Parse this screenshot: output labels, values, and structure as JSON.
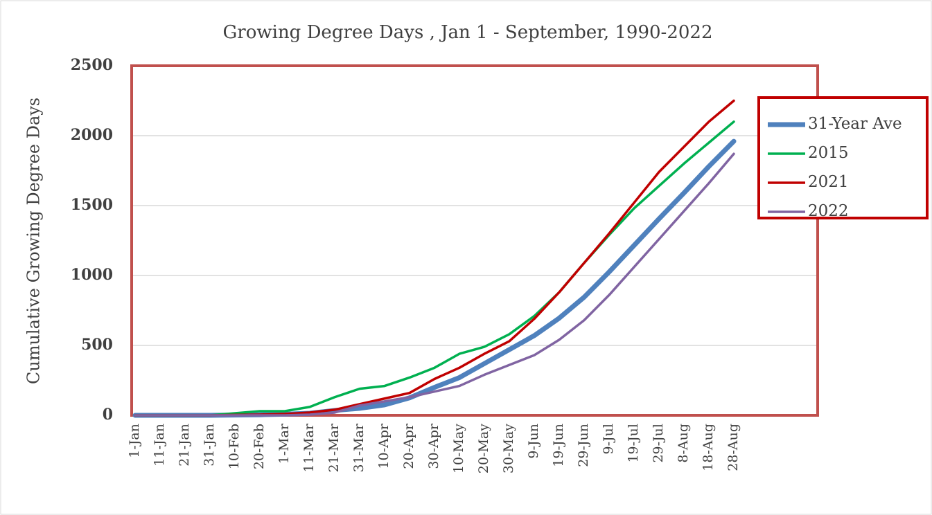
{
  "chart_data": {
    "type": "line",
    "title": "Growing Degree Days , Jan 1 - September, 1990-2022",
    "y_label": "Cumulative Growing Degree Days",
    "categories": [
      "1-Jan",
      "11-Jan",
      "21-Jan",
      "31-Jan",
      "10-Feb",
      "20-Feb",
      "1-Mar",
      "11-Mar",
      "21-Mar",
      "31-Mar",
      "10-Apr",
      "20-Apr",
      "30-Apr",
      "10-May",
      "20-May",
      "30-May",
      "9-Jun",
      "19-Jun",
      "29-Jun",
      "9-Jul",
      "19-Jul",
      "29-Jul",
      "8-Aug",
      "18-Aug",
      "28-Aug",
      null,
      null,
      null
    ],
    "series": [
      {
        "name": "31-Year Ave",
        "color": "#4f81bd",
        "values": [
          0,
          0,
          0,
          0,
          2,
          4,
          8,
          15,
          35,
          50,
          75,
          125,
          200,
          270,
          370,
          470,
          570,
          695,
          845,
          1025,
          1215,
          1405,
          1590,
          1780,
          1960,
          null,
          null,
          null
        ]
      },
      {
        "name": "2015",
        "color": "#00b050",
        "values": [
          0,
          0,
          0,
          0,
          15,
          30,
          30,
          60,
          130,
          190,
          210,
          270,
          340,
          440,
          490,
          580,
          710,
          880,
          1090,
          1290,
          1480,
          1640,
          1800,
          1950,
          2100,
          null,
          null,
          null
        ]
      },
      {
        "name": "2021",
        "color": "#c00000",
        "values": [
          0,
          0,
          0,
          0,
          3,
          5,
          10,
          20,
          40,
          80,
          120,
          160,
          260,
          340,
          440,
          530,
          690,
          880,
          1090,
          1300,
          1520,
          1740,
          1920,
          2100,
          2250,
          null,
          null,
          null
        ]
      },
      {
        "name": "2022",
        "color": "#8064a2",
        "values": [
          0,
          0,
          0,
          0,
          0,
          0,
          0,
          5,
          20,
          70,
          100,
          130,
          170,
          210,
          290,
          360,
          430,
          540,
          680,
          860,
          1060,
          1260,
          1460,
          1660,
          1870,
          null,
          null,
          null
        ]
      }
    ],
    "ylim": [
      0,
      2500
    ],
    "yticks": [
      0,
      500,
      1000,
      1500,
      2000,
      2500
    ],
    "grid": true,
    "legend": "right"
  }
}
